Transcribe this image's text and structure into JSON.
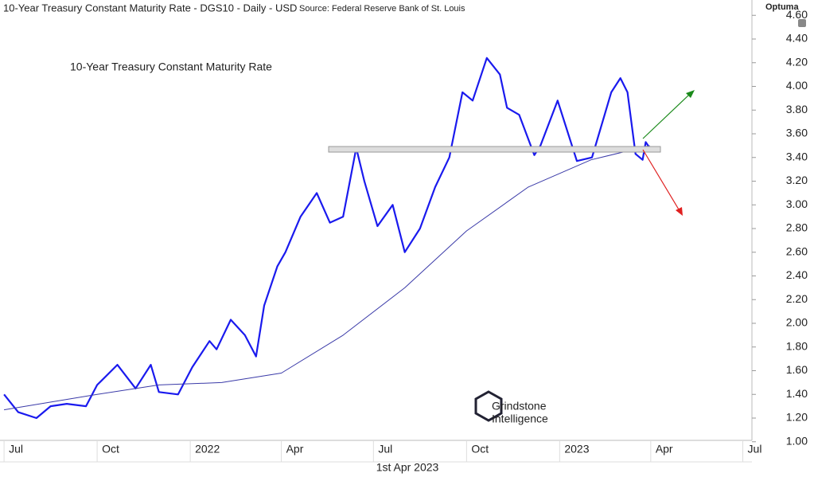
{
  "chart_data": {
    "type": "line",
    "header": "10-Year Treasury Constant Maturity Rate - DGS10 - Daily - USD",
    "source": "Source: Federal Reserve Bank of St. Louis",
    "brand": "Optuma",
    "title": "10-Year Treasury Constant Maturity Rate",
    "watermark": [
      "Grindstone",
      "Intelligence"
    ],
    "date_label": "1st Apr 2023",
    "xlim": [
      "2021-06-27",
      "2023-07-10"
    ],
    "xticks": [
      {
        "value": "2021-07-01",
        "label": "Jul"
      },
      {
        "value": "2021-10-01",
        "label": "Oct"
      },
      {
        "value": "2022-01-01",
        "label": "2022"
      },
      {
        "value": "2022-04-01",
        "label": "Apr"
      },
      {
        "value": "2022-07-01",
        "label": "Jul"
      },
      {
        "value": "2022-10-01",
        "label": "Oct"
      },
      {
        "value": "2023-01-01",
        "label": "2023"
      },
      {
        "value": "2023-04-01",
        "label": "Apr"
      },
      {
        "value": "2023-07-01",
        "label": "Jul"
      }
    ],
    "ylim": [
      1.0,
      4.6
    ],
    "yticks": [
      {
        "value": 1.0,
        "label": "1.00"
      },
      {
        "value": 1.2,
        "label": "1.20"
      },
      {
        "value": 1.4,
        "label": "1.40"
      },
      {
        "value": 1.6,
        "label": "1.60"
      },
      {
        "value": 1.8,
        "label": "1.80"
      },
      {
        "value": 2.0,
        "label": "2.00"
      },
      {
        "value": 2.2,
        "label": "2.20"
      },
      {
        "value": 2.4,
        "label": "2.40"
      },
      {
        "value": 2.6,
        "label": "2.60"
      },
      {
        "value": 2.8,
        "label": "2.80"
      },
      {
        "value": 3.0,
        "label": "3.00"
      },
      {
        "value": 3.2,
        "label": "3.20"
      },
      {
        "value": 3.4,
        "label": "3.40"
      },
      {
        "value": 3.6,
        "label": "3.60"
      },
      {
        "value": 3.8,
        "label": "3.80"
      },
      {
        "value": 4.0,
        "label": "4.00"
      },
      {
        "value": 4.2,
        "label": "4.20"
      },
      {
        "value": 4.4,
        "label": "4.40"
      },
      {
        "value": 4.6,
        "label": "4.60"
      }
    ],
    "grid": false,
    "series": [
      {
        "color": "#1a1aee",
        "width": 2.2,
        "x": [
          "2021-07-01",
          "2021-07-15",
          "2021-08-02",
          "2021-08-16",
          "2021-09-01",
          "2021-09-20",
          "2021-10-01",
          "2021-10-21",
          "2021-11-08",
          "2021-11-23",
          "2021-12-01",
          "2021-12-20",
          "2022-01-03",
          "2022-01-20",
          "2022-01-27",
          "2022-02-10",
          "2022-02-24",
          "2022-03-07",
          "2022-03-15",
          "2022-03-28",
          "2022-04-05",
          "2022-04-20",
          "2022-05-06",
          "2022-05-19",
          "2022-06-01",
          "2022-06-14",
          "2022-06-22",
          "2022-07-05",
          "2022-07-20",
          "2022-08-01",
          "2022-08-16",
          "2022-08-31",
          "2022-09-14",
          "2022-09-27",
          "2022-10-07",
          "2022-10-21",
          "2022-11-03",
          "2022-11-10",
          "2022-11-22",
          "2022-12-07",
          "2022-12-13",
          "2022-12-30",
          "2023-01-18",
          "2023-02-02",
          "2023-02-21",
          "2023-03-02",
          "2023-03-09",
          "2023-03-17",
          "2023-03-24",
          "2023-03-27",
          "2023-03-31"
        ],
        "values": [
          1.4,
          1.25,
          1.2,
          1.3,
          1.32,
          1.3,
          1.48,
          1.65,
          1.45,
          1.65,
          1.42,
          1.4,
          1.63,
          1.85,
          1.78,
          2.03,
          1.9,
          1.72,
          2.15,
          2.48,
          2.6,
          2.9,
          3.1,
          2.85,
          2.9,
          3.48,
          3.2,
          2.82,
          3.0,
          2.6,
          2.8,
          3.15,
          3.4,
          3.95,
          3.88,
          4.24,
          4.1,
          3.82,
          3.76,
          3.42,
          3.5,
          3.88,
          3.37,
          3.4,
          3.95,
          4.07,
          3.95,
          3.43,
          3.38,
          3.53,
          3.48
        ]
      },
      {
        "color": "#3a3aa8",
        "width": 1,
        "x": [
          "2021-07-01",
          "2021-10-01",
          "2021-12-01",
          "2022-02-01",
          "2022-04-01",
          "2022-06-01",
          "2022-08-01",
          "2022-10-01",
          "2022-12-01",
          "2023-02-01",
          "2023-03-31"
        ],
        "values": [
          1.27,
          1.4,
          1.48,
          1.5,
          1.58,
          1.9,
          2.3,
          2.78,
          3.15,
          3.38,
          3.5
        ]
      }
    ]
  }
}
